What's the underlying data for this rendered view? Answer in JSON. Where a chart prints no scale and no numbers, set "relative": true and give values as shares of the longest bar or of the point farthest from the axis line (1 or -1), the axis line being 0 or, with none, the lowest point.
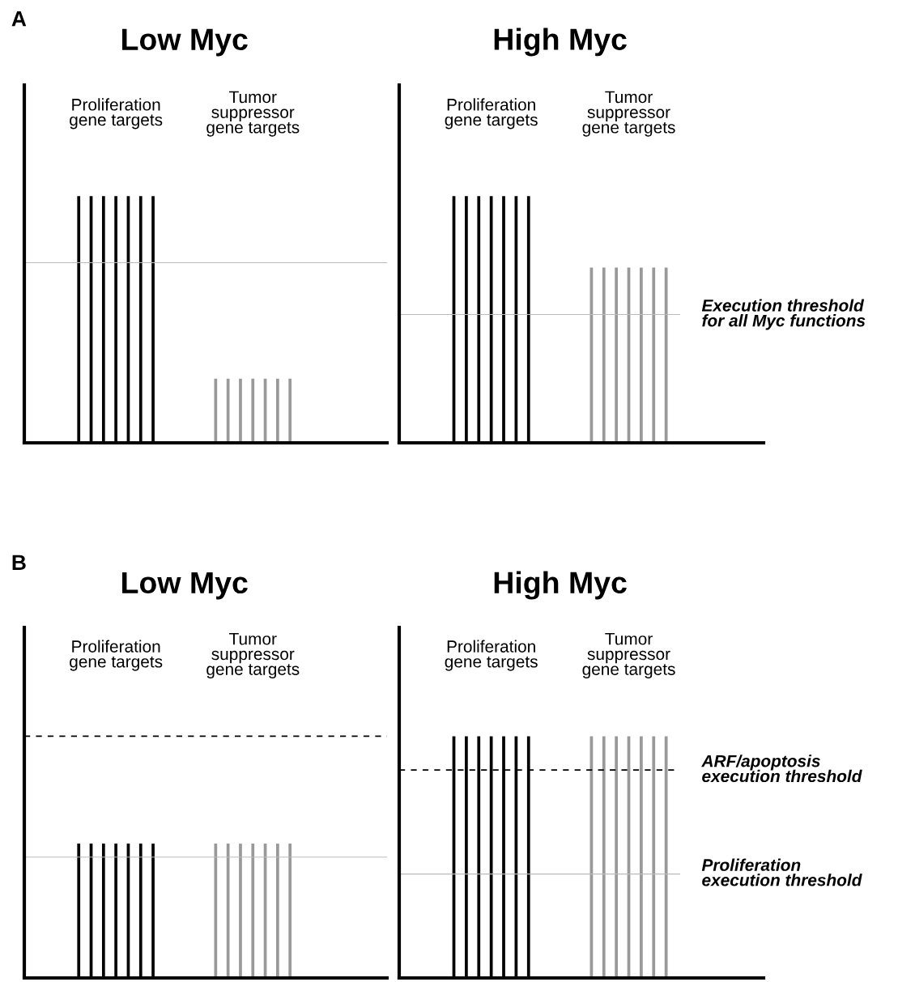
{
  "chart_data": [
    {
      "type": "bar",
      "relative": true,
      "title": "Low Myc",
      "annotations": [
        "A"
      ],
      "categories": [
        "Proliferation\ngene targets",
        "Tumor\nsuppressor\ngene targets"
      ],
      "series": [
        {
          "colors": [
            "#000000",
            "#999999"
          ],
          "values": [
            1,
            0.26
          ]
        },
        {
          "colors": [
            "#000000",
            "#999999"
          ],
          "values": [
            1,
            0.26
          ]
        },
        {
          "colors": [
            "#000000",
            "#999999"
          ],
          "values": [
            1,
            0.26
          ]
        },
        {
          "colors": [
            "#000000",
            "#999999"
          ],
          "values": [
            1,
            0.26
          ]
        },
        {
          "colors": [
            "#000000",
            "#999999"
          ],
          "values": [
            1,
            0.26
          ]
        },
        {
          "colors": [
            "#000000",
            "#999999"
          ],
          "values": [
            1,
            0.26
          ]
        },
        {
          "colors": [
            "#000000",
            "#999999"
          ],
          "values": [
            1,
            0.26
          ]
        }
      ],
      "ref_lines": [
        {
          "axis": "y",
          "value": 0.73,
          "color": "#bbbbbb"
        }
      ]
    },
    {
      "type": "bar",
      "relative": true,
      "title": "High Myc",
      "categories": [
        "Proliferation\ngene targets",
        "Tumor\nsuppressor\ngene targets"
      ],
      "series": [
        {
          "colors": [
            "#000000",
            "#999999"
          ],
          "values": [
            1,
            0.71
          ]
        },
        {
          "colors": [
            "#000000",
            "#999999"
          ],
          "values": [
            1,
            0.71
          ]
        },
        {
          "colors": [
            "#000000",
            "#999999"
          ],
          "values": [
            1,
            0.71
          ]
        },
        {
          "colors": [
            "#000000",
            "#999999"
          ],
          "values": [
            1,
            0.71
          ]
        },
        {
          "colors": [
            "#000000",
            "#999999"
          ],
          "values": [
            1,
            0.71
          ]
        },
        {
          "colors": [
            "#000000",
            "#999999"
          ],
          "values": [
            1,
            0.71
          ]
        },
        {
          "colors": [
            "#000000",
            "#999999"
          ],
          "values": [
            1,
            0.71
          ]
        }
      ],
      "ref_lines": [
        {
          "axis": "y",
          "value": 0.52,
          "color": "#bbbbbb",
          "label": "Execution threshold\nfor all Myc functions"
        }
      ]
    },
    {
      "type": "bar",
      "relative": true,
      "title": "Low Myc",
      "annotations": [
        "B"
      ],
      "categories": [
        "Proliferation\ngene targets",
        "Tumor\nsuppressor\ngene targets"
      ],
      "series": [
        {
          "colors": [
            "#000000",
            "#999999"
          ],
          "values": [
            1,
            1
          ]
        },
        {
          "colors": [
            "#000000",
            "#999999"
          ],
          "values": [
            1,
            1
          ]
        },
        {
          "colors": [
            "#000000",
            "#999999"
          ],
          "values": [
            1,
            1
          ]
        },
        {
          "colors": [
            "#000000",
            "#999999"
          ],
          "values": [
            1,
            1
          ]
        },
        {
          "colors": [
            "#000000",
            "#999999"
          ],
          "values": [
            1,
            1
          ]
        },
        {
          "colors": [
            "#000000",
            "#999999"
          ],
          "values": [
            1,
            1
          ]
        },
        {
          "colors": [
            "#000000",
            "#999999"
          ],
          "values": [
            1,
            1
          ]
        }
      ],
      "ref_lines": [
        {
          "axis": "y",
          "value": 1.8,
          "color": "#000000",
          "line_style": "dashed"
        },
        {
          "axis": "y",
          "value": 0.9,
          "color": "#bbbbbb"
        }
      ]
    },
    {
      "type": "bar",
      "relative": true,
      "title": "High Myc",
      "categories": [
        "Proliferation\ngene targets",
        "Tumor\nsuppressor\ngene targets"
      ],
      "series": [
        {
          "colors": [
            "#000000",
            "#999999"
          ],
          "values": [
            1,
            1
          ]
        },
        {
          "colors": [
            "#000000",
            "#999999"
          ],
          "values": [
            1,
            1
          ]
        },
        {
          "colors": [
            "#000000",
            "#999999"
          ],
          "values": [
            1,
            1
          ]
        },
        {
          "colors": [
            "#000000",
            "#999999"
          ],
          "values": [
            1,
            1
          ]
        },
        {
          "colors": [
            "#000000",
            "#999999"
          ],
          "values": [
            1,
            1
          ]
        },
        {
          "colors": [
            "#000000",
            "#999999"
          ],
          "values": [
            1,
            1
          ]
        },
        {
          "colors": [
            "#000000",
            "#999999"
          ],
          "values": [
            1,
            1
          ]
        }
      ],
      "ref_lines": [
        {
          "axis": "y",
          "value": 0.86,
          "color": "#000000",
          "line_style": "dashed",
          "label": "ARF/apoptosis\nexecution threshold"
        },
        {
          "axis": "y",
          "value": 0.43,
          "color": "#bbbbbb",
          "label": "Proliferation\nexecution threshold"
        }
      ]
    }
  ]
}
